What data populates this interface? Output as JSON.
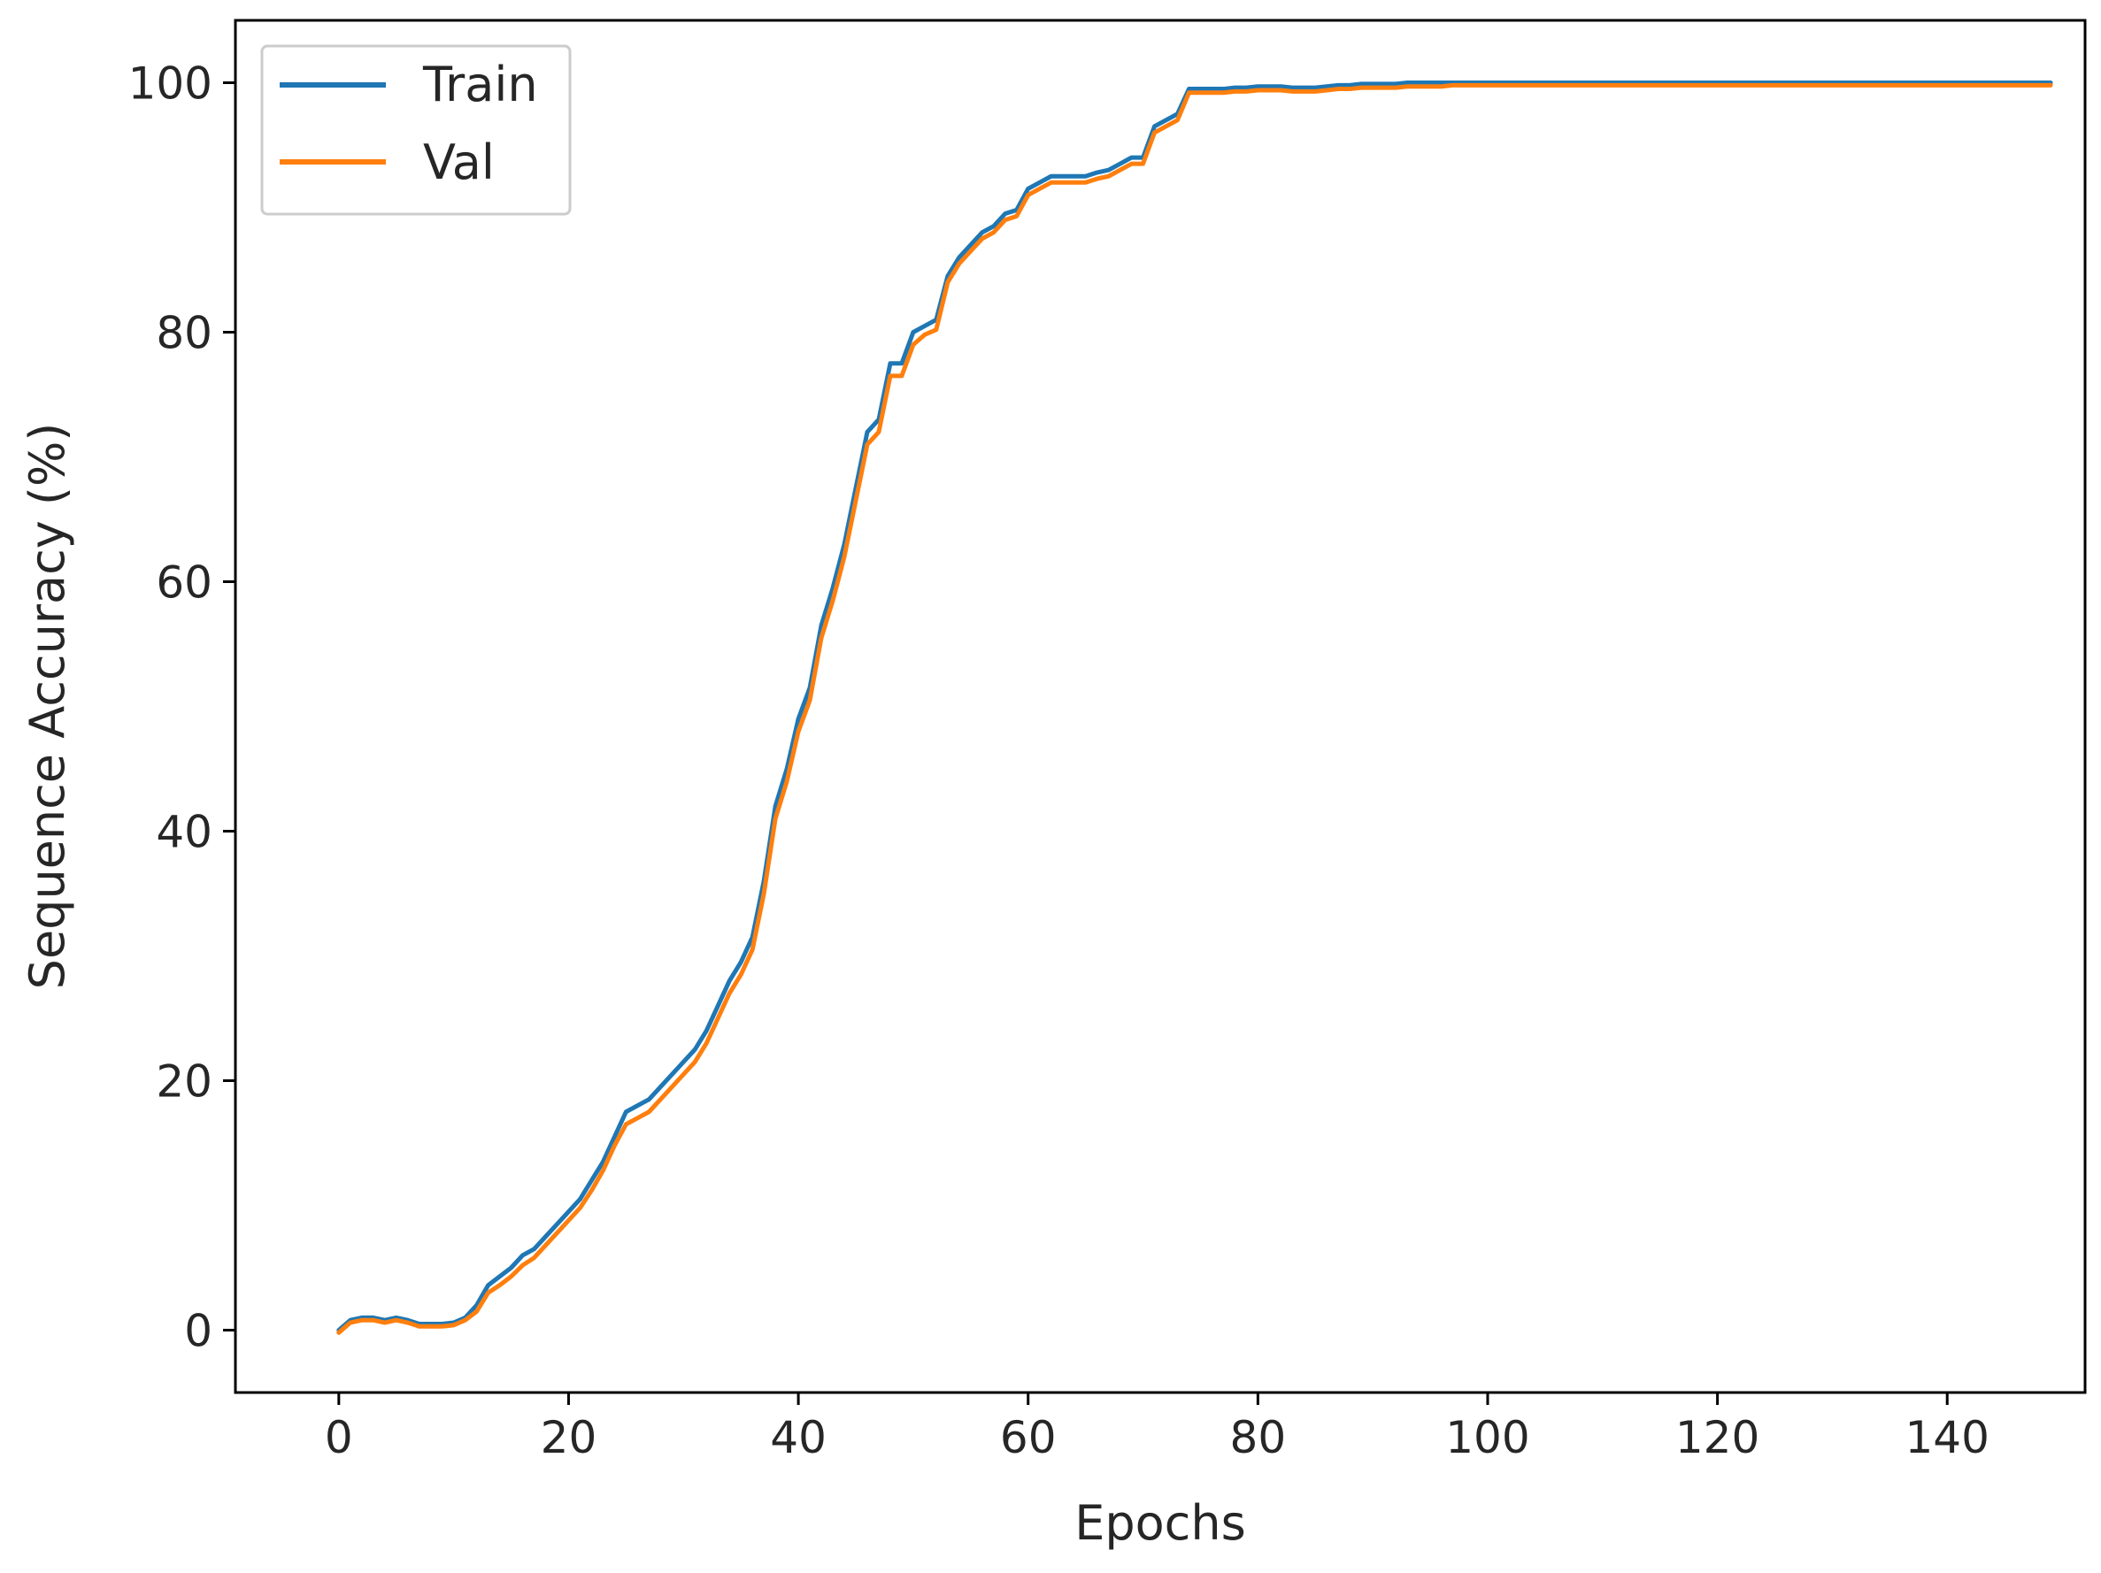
{
  "chart_data": {
    "type": "line",
    "xlabel": "Epochs",
    "ylabel": "Sequence Accuracy (%)",
    "xlim": [
      -9,
      152
    ],
    "ylim": [
      -5,
      105
    ],
    "xticks": [
      0,
      20,
      40,
      60,
      80,
      100,
      120,
      140
    ],
    "yticks": [
      0,
      20,
      40,
      60,
      80,
      100
    ],
    "grid": false,
    "legend_position": "top-left",
    "series": [
      {
        "name": "Train",
        "color": "#1f77b4",
        "x": [
          0,
          1,
          2,
          3,
          4,
          5,
          6,
          7,
          8,
          9,
          10,
          11,
          12,
          13,
          14,
          15,
          16,
          17,
          18,
          19,
          20,
          21,
          22,
          23,
          24,
          25,
          26,
          27,
          28,
          29,
          30,
          31,
          32,
          33,
          34,
          35,
          36,
          37,
          38,
          39,
          40,
          41,
          42,
          43,
          44,
          45,
          46,
          47,
          48,
          49,
          50,
          51,
          52,
          53,
          54,
          55,
          56,
          57,
          58,
          59,
          60,
          61,
          62,
          63,
          64,
          65,
          66,
          67,
          68,
          69,
          70,
          71,
          72,
          73,
          74,
          75,
          76,
          77,
          78,
          79,
          80,
          81,
          82,
          83,
          84,
          85,
          86,
          87,
          88,
          89,
          90,
          91,
          92,
          93,
          94,
          95,
          96,
          97,
          98,
          99,
          100,
          101,
          102,
          103,
          104,
          105,
          106,
          107,
          108,
          109,
          110,
          111,
          112,
          113,
          114,
          115,
          116,
          117,
          118,
          119,
          120,
          121,
          122,
          123,
          124,
          125,
          126,
          127,
          128,
          129,
          130,
          131,
          132,
          133,
          134,
          135,
          136,
          137,
          138,
          139,
          140,
          141,
          142,
          143,
          144,
          145,
          146,
          147,
          148,
          149
        ],
        "y": [
          0.0,
          0.8,
          1.0,
          1.0,
          0.8,
          1.0,
          0.8,
          0.5,
          0.5,
          0.5,
          0.6,
          1.0,
          2.0,
          3.6,
          4.3,
          5.0,
          6.0,
          6.5,
          7.5,
          8.5,
          9.5,
          10.5,
          12.0,
          13.5,
          15.5,
          17.5,
          18.0,
          18.5,
          19.5,
          20.5,
          21.5,
          22.5,
          24.0,
          26.0,
          28.0,
          29.5,
          31.5,
          36.0,
          42.0,
          45.0,
          49.0,
          51.5,
          56.5,
          59.5,
          63.0,
          67.5,
          72.0,
          73.0,
          77.5,
          77.5,
          80.0,
          80.5,
          81.0,
          84.5,
          86.0,
          87.0,
          88.0,
          88.5,
          89.5,
          89.8,
          91.5,
          92.0,
          92.5,
          92.5,
          92.5,
          92.5,
          92.8,
          93.0,
          93.5,
          94.0,
          94.0,
          96.5,
          97.0,
          97.5,
          99.5,
          99.5,
          99.5,
          99.5,
          99.6,
          99.6,
          99.7,
          99.7,
          99.7,
          99.6,
          99.6,
          99.6,
          99.7,
          99.8,
          99.8,
          99.9,
          99.9,
          99.9,
          99.9,
          100.0,
          100.0,
          100.0,
          100.0,
          100.0,
          100.0,
          100.0,
          100.0,
          100.0,
          100.0,
          100.0,
          100.0,
          100.0,
          100.0,
          100.0,
          100.0,
          100.0,
          100.0,
          100.0,
          100.0,
          100.0,
          100.0,
          100.0,
          100.0,
          100.0,
          100.0,
          100.0,
          100.0,
          100.0,
          100.0,
          100.0,
          100.0,
          100.0,
          100.0,
          100.0,
          100.0,
          100.0,
          100.0,
          100.0,
          100.0,
          100.0,
          100.0,
          100.0,
          100.0,
          100.0,
          100.0,
          100.0,
          100.0,
          100.0,
          100.0,
          100.0,
          100.0,
          100.0,
          100.0,
          100.0,
          100.0,
          100.0
        ]
      },
      {
        "name": "Val",
        "color": "#ff7f0e",
        "x": [
          0,
          1,
          2,
          3,
          4,
          5,
          6,
          7,
          8,
          9,
          10,
          11,
          12,
          13,
          14,
          15,
          16,
          17,
          18,
          19,
          20,
          21,
          22,
          23,
          24,
          25,
          26,
          27,
          28,
          29,
          30,
          31,
          32,
          33,
          34,
          35,
          36,
          37,
          38,
          39,
          40,
          41,
          42,
          43,
          44,
          45,
          46,
          47,
          48,
          49,
          50,
          51,
          52,
          53,
          54,
          55,
          56,
          57,
          58,
          59,
          60,
          61,
          62,
          63,
          64,
          65,
          66,
          67,
          68,
          69,
          70,
          71,
          72,
          73,
          74,
          75,
          76,
          77,
          78,
          79,
          80,
          81,
          82,
          83,
          84,
          85,
          86,
          87,
          88,
          89,
          90,
          91,
          92,
          93,
          94,
          95,
          96,
          97,
          98,
          99,
          100,
          101,
          102,
          103,
          104,
          105,
          106,
          107,
          108,
          109,
          110,
          111,
          112,
          113,
          114,
          115,
          116,
          117,
          118,
          119,
          120,
          121,
          122,
          123,
          124,
          125,
          126,
          127,
          128,
          129,
          130,
          131,
          132,
          133,
          134,
          135,
          136,
          137,
          138,
          139,
          140,
          141,
          142,
          143,
          144,
          145,
          146,
          147,
          148,
          149
        ],
        "y": [
          -0.2,
          0.6,
          0.8,
          0.8,
          0.6,
          0.8,
          0.6,
          0.3,
          0.3,
          0.3,
          0.4,
          0.8,
          1.5,
          3.0,
          3.6,
          4.3,
          5.2,
          5.8,
          6.8,
          7.8,
          8.8,
          9.8,
          11.2,
          12.8,
          14.8,
          16.5,
          17.0,
          17.5,
          18.5,
          19.5,
          20.5,
          21.5,
          23.0,
          25.0,
          27.0,
          28.5,
          30.5,
          35.0,
          41.0,
          44.0,
          48.0,
          50.5,
          55.5,
          58.5,
          62.0,
          66.5,
          71.0,
          72.0,
          76.5,
          76.5,
          79.0,
          79.8,
          80.2,
          84.0,
          85.5,
          86.5,
          87.5,
          88.0,
          89.0,
          89.3,
          91.0,
          91.5,
          92.0,
          92.0,
          92.0,
          92.0,
          92.3,
          92.5,
          93.0,
          93.5,
          93.5,
          96.0,
          96.5,
          97.0,
          99.2,
          99.2,
          99.2,
          99.2,
          99.3,
          99.3,
          99.4,
          99.4,
          99.4,
          99.3,
          99.3,
          99.3,
          99.4,
          99.5,
          99.5,
          99.6,
          99.6,
          99.6,
          99.6,
          99.7,
          99.7,
          99.7,
          99.7,
          99.8,
          99.8,
          99.8,
          99.8,
          99.8,
          99.8,
          99.8,
          99.8,
          99.8,
          99.8,
          99.8,
          99.8,
          99.8,
          99.8,
          99.8,
          99.8,
          99.8,
          99.8,
          99.8,
          99.8,
          99.8,
          99.8,
          99.8,
          99.8,
          99.8,
          99.8,
          99.8,
          99.8,
          99.8,
          99.8,
          99.8,
          99.8,
          99.8,
          99.8,
          99.8,
          99.8,
          99.8,
          99.8,
          99.8,
          99.8,
          99.8,
          99.8,
          99.8,
          99.8,
          99.8,
          99.8,
          99.8,
          99.8,
          99.8,
          99.8,
          99.8,
          99.8,
          99.8
        ]
      }
    ]
  }
}
